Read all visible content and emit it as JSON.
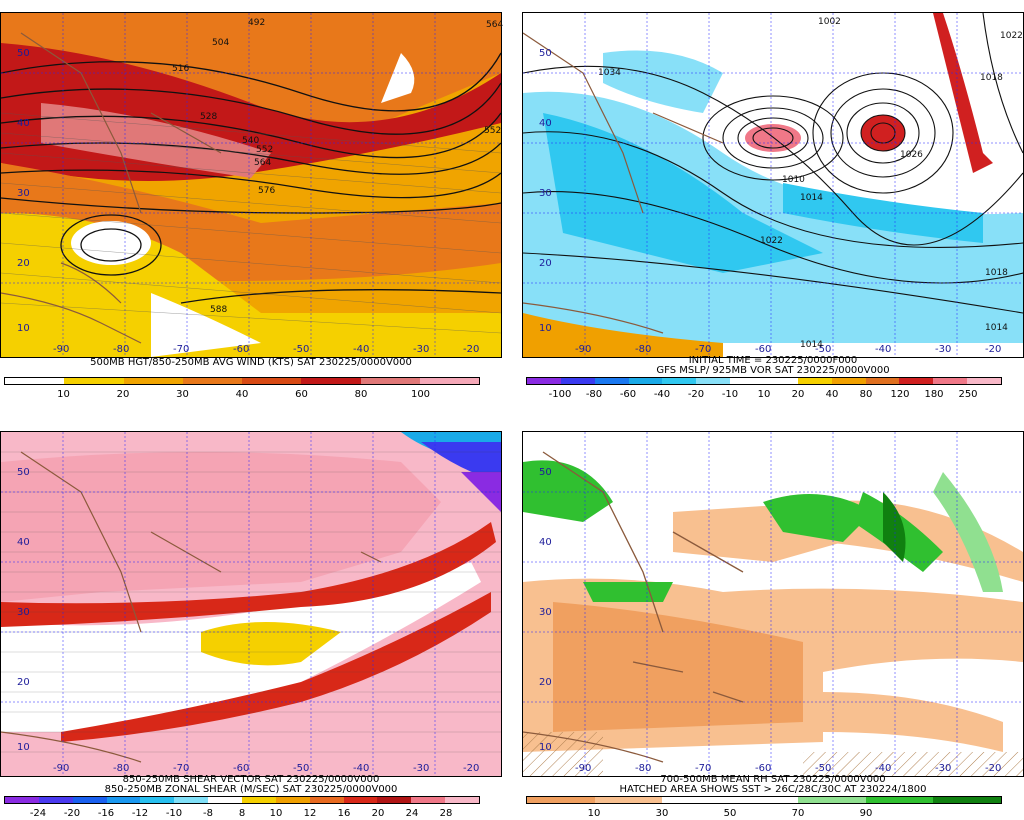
{
  "panels": [
    {
      "caption": [
        "500MB HGT/850-250MB AVG WIND (KTS) SAT 230225/0000V000"
      ],
      "colorbar": {
        "labels": [
          "10",
          "20",
          "30",
          "40",
          "60",
          "80",
          "100"
        ],
        "colors": [
          "#ffffff",
          "#f5d000",
          "#f0a400",
          "#e8781a",
          "#d84a14",
          "#c21818",
          "#e07878",
          "#f5a8b8"
        ]
      },
      "lon_labels": [
        "-90",
        "-80",
        "-70",
        "-60",
        "-50",
        "-40",
        "-30",
        "-20"
      ],
      "lat_labels": [
        "50",
        "40",
        "30",
        "20",
        "10"
      ],
      "contour_labels": [
        "492",
        "504",
        "516",
        "528",
        "540",
        "552",
        "564",
        "576",
        "588",
        "552",
        "564"
      ]
    },
    {
      "caption": [
        "INITIAL TIME = 230225/0000F000",
        "GFS MSLP/ 925MB VOR SAT 230225/0000V000"
      ],
      "colorbar": {
        "labels": [
          "-100",
          "-80",
          "-60",
          "-40",
          "-20",
          "-10",
          "10",
          "20",
          "40",
          "80",
          "120",
          "180",
          "250"
        ],
        "colors": [
          "#8a2be2",
          "#3a3af0",
          "#1a78f0",
          "#1aaae8",
          "#30c8f0",
          "#88e0f8",
          "#ffffff",
          "#ffffff",
          "#f5d000",
          "#f0a000",
          "#e07020",
          "#d02020",
          "#f07888",
          "#f8b8c8"
        ]
      },
      "lon_labels": [
        "-90",
        "-80",
        "-70",
        "-60",
        "-50",
        "-40",
        "-30",
        "-20"
      ],
      "lat_labels": [
        "50",
        "40",
        "30",
        "20",
        "10"
      ],
      "contour_labels": [
        "1002",
        "1022",
        "1034",
        "1010",
        "1014",
        "1018",
        "1022",
        "1018",
        "1014",
        "1014",
        "1026"
      ]
    },
    {
      "caption": [
        "850-250MB SHEAR VECTOR SAT 230225/0000V000",
        "850-250MB ZONAL SHEAR (M/SEC) SAT 230225/0000V000"
      ],
      "colorbar": {
        "labels": [
          "-24",
          "-20",
          "-16",
          "-12",
          "-10",
          "-8",
          "8",
          "10",
          "12",
          "16",
          "20",
          "24",
          "28"
        ],
        "colors": [
          "#8a2be2",
          "#4a3af0",
          "#1a60f0",
          "#1a98f0",
          "#28c0f0",
          "#80e0f8",
          "#ffffff",
          "#f5d000",
          "#f0a000",
          "#e86a20",
          "#d82818",
          "#b01414",
          "#f07888",
          "#f8b8c8"
        ]
      },
      "lon_labels": [
        "-90",
        "-80",
        "-70",
        "-60",
        "-50",
        "-40",
        "-30",
        "-20"
      ],
      "lat_labels": [
        "50",
        "40",
        "30",
        "20",
        "10"
      ]
    },
    {
      "caption": [
        "700-500MB MEAN RH SAT 230225/0000V000",
        "HATCHED AREA SHOWS SST > 26C/28C/30C AT 230224/1800"
      ],
      "colorbar": {
        "labels": [
          "10",
          "30",
          "50",
          "70",
          "90"
        ],
        "colors": [
          "#f0a060",
          "#f8c090",
          "#ffffff",
          "#ffffff",
          "#90e090",
          "#30c030",
          "#108010"
        ]
      },
      "lon_labels": [
        "-90",
        "-80",
        "-70",
        "-60",
        "-50",
        "-40",
        "-30",
        "-20"
      ],
      "lat_labels": [
        "50",
        "40",
        "30",
        "20",
        "10"
      ]
    }
  ]
}
